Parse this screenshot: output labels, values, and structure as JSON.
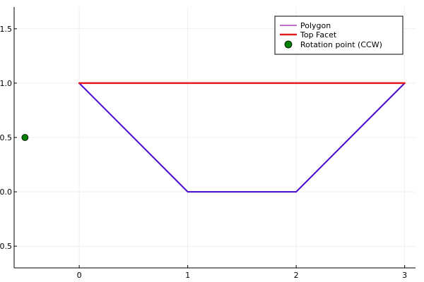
{
  "chart_data": {
    "type": "line",
    "title": "",
    "xlabel": "",
    "ylabel": "",
    "xlim": [
      -0.6,
      3.1
    ],
    "ylim": [
      -0.7,
      1.7
    ],
    "x_ticks": [
      0,
      1,
      2,
      3
    ],
    "x_tick_labels": [
      "0",
      "1",
      "2",
      "3"
    ],
    "y_ticks": [
      -0.5,
      0.0,
      0.5,
      1.0,
      1.5
    ],
    "y_tick_labels": [
      "-0.5",
      "0.0",
      "0.5",
      "1.0",
      "1.5"
    ],
    "grid": true,
    "legend_position": "top-right",
    "series": [
      {
        "name": "Polygon",
        "kind": "line",
        "color": "#c271d2",
        "x": [
          0,
          1,
          2,
          3,
          0
        ],
        "y": [
          1,
          0,
          0,
          1,
          1
        ]
      },
      {
        "name": "Top Facet",
        "kind": "line",
        "color": "#e41a1c",
        "x": [
          0,
          3
        ],
        "y": [
          1,
          1
        ]
      },
      {
        "name": "Rotation point (CCW)",
        "kind": "scatter",
        "color": "#008000",
        "x": [
          -0.5
        ],
        "y": [
          0.5
        ]
      }
    ],
    "overlay": {
      "color": "#4b0fd1",
      "x": [
        0,
        1,
        2,
        3
      ],
      "y": [
        1,
        0,
        0,
        1
      ]
    }
  }
}
